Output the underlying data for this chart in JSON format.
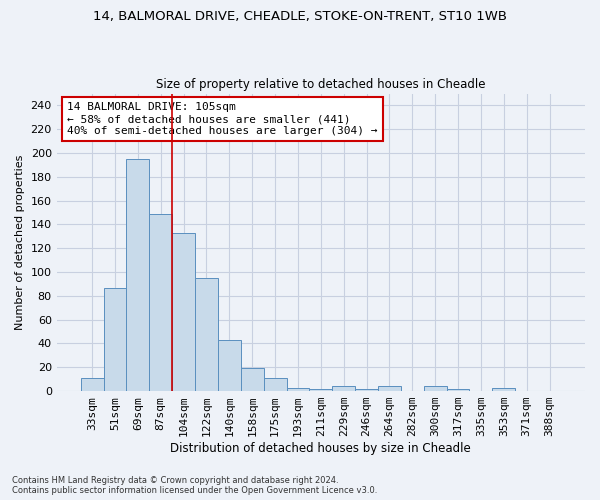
{
  "title1": "14, BALMORAL DRIVE, CHEADLE, STOKE-ON-TRENT, ST10 1WB",
  "title2": "Size of property relative to detached houses in Cheadle",
  "xlabel": "Distribution of detached houses by size in Cheadle",
  "ylabel": "Number of detached properties",
  "categories": [
    "33sqm",
    "51sqm",
    "69sqm",
    "87sqm",
    "104sqm",
    "122sqm",
    "140sqm",
    "158sqm",
    "175sqm",
    "193sqm",
    "211sqm",
    "229sqm",
    "246sqm",
    "264sqm",
    "282sqm",
    "300sqm",
    "317sqm",
    "335sqm",
    "353sqm",
    "371sqm",
    "388sqm"
  ],
  "values": [
    11,
    87,
    195,
    149,
    133,
    95,
    43,
    19,
    11,
    3,
    2,
    4,
    2,
    4,
    0,
    4,
    2,
    0,
    3,
    0,
    0
  ],
  "bar_color": "#c8daea",
  "bar_edge_color": "#5a8fbf",
  "bar_edge_width": 0.7,
  "vline_x": 3.5,
  "vline_color": "#cc0000",
  "annotation_text": "14 BALMORAL DRIVE: 105sqm\n← 58% of detached houses are smaller (441)\n40% of semi-detached houses are larger (304) →",
  "annotation_box_color": "#ffffff",
  "annotation_box_edge": "#cc0000",
  "ylim": [
    0,
    250
  ],
  "yticks": [
    0,
    20,
    40,
    60,
    80,
    100,
    120,
    140,
    160,
    180,
    200,
    220,
    240
  ],
  "grid_color": "#c8d0e0",
  "footnote": "Contains HM Land Registry data © Crown copyright and database right 2024.\nContains public sector information licensed under the Open Government Licence v3.0.",
  "fig_width": 6.0,
  "fig_height": 5.0,
  "bg_color": "#eef2f8"
}
